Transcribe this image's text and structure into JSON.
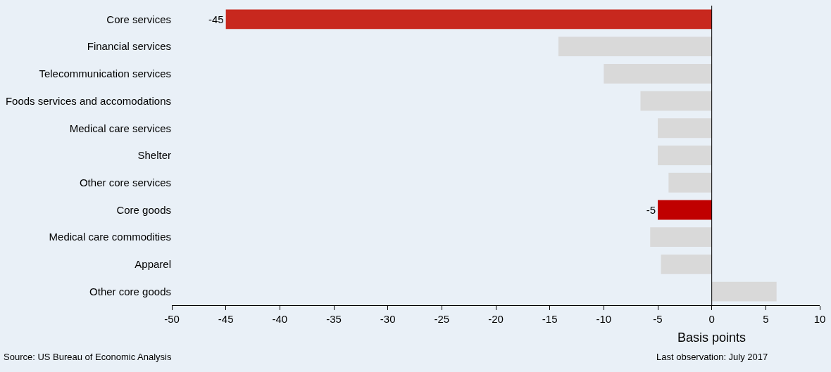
{
  "chart_data": {
    "type": "bar",
    "orientation": "horizontal",
    "xlabel": "Basis points",
    "categories": [
      "Core services",
      "Financial services",
      "Telecommunication services",
      "Foods services and accomodations",
      "Medical care services",
      "Shelter",
      "Other core services",
      "Core goods",
      "Medical care commodities",
      "Apparel",
      "Other core goods"
    ],
    "values": [
      -45,
      -14.2,
      -10.0,
      -6.6,
      -5.0,
      -5.0,
      -4.0,
      -5,
      -5.7,
      -4.7,
      6.0
    ],
    "colors": [
      "#c8281e",
      "#d9d9d9",
      "#d9d9d9",
      "#d9d9d9",
      "#d9d9d9",
      "#d9d9d9",
      "#d9d9d9",
      "#c00000",
      "#d9d9d9",
      "#d9d9d9",
      "#d9d9d9"
    ],
    "value_labels": [
      "-45",
      null,
      null,
      null,
      null,
      null,
      null,
      "-5",
      null,
      null,
      null
    ],
    "xlim": [
      -50,
      10
    ],
    "xticks": [
      -50,
      -45,
      -40,
      -35,
      -30,
      -25,
      -20,
      -15,
      -10,
      -5,
      0,
      5,
      10
    ],
    "annotations": [
      "Source: US Bureau of Economic Analysis",
      "Last observation: July 2017"
    ]
  }
}
